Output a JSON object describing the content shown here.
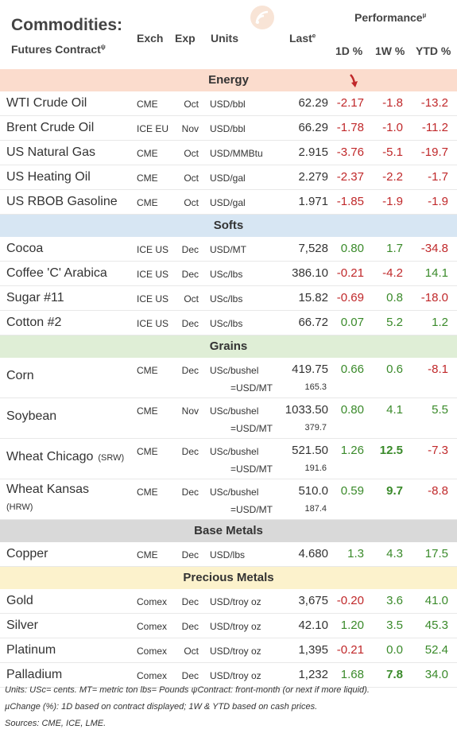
{
  "header": {
    "title": "Commodities:",
    "subtitle": "Futures Contract",
    "subtitle_sup": "ψ",
    "cols": {
      "exch": "Exch",
      "exp": "Exp",
      "units": "Units",
      "last": "Last",
      "last_sup": "e"
    },
    "performance": "Performance",
    "performance_sup": "µ",
    "pcols": {
      "d1": "1D %",
      "w1": "1W %",
      "ytd": "YTD %"
    }
  },
  "sections": {
    "energy": "Energy",
    "softs": "Softs",
    "grains": "Grains",
    "base": "Base Metals",
    "precious": "Precious Metals"
  },
  "energy": [
    {
      "name": "WTI Crude Oil",
      "exch": "CME",
      "exp": "Oct",
      "units": "USD/bbl",
      "last": "62.29",
      "d1": "-2.17",
      "w1": "-1.8",
      "ytd": "-13.2"
    },
    {
      "name": "Brent Crude Oil",
      "exch": "ICE EU",
      "exp": "Nov",
      "units": "USD/bbl",
      "last": "66.29",
      "d1": "-1.78",
      "w1": "-1.0",
      "ytd": "-11.2"
    },
    {
      "name": "US Natural Gas",
      "exch": "CME",
      "exp": "Oct",
      "units": "USD/MMBtu",
      "last": "2.915",
      "d1": "-3.76",
      "w1": "-5.1",
      "ytd": "-19.7"
    },
    {
      "name": "US Heating Oil",
      "exch": "CME",
      "exp": "Oct",
      "units": "USD/gal",
      "last": "2.279",
      "d1": "-2.37",
      "w1": "-2.2",
      "ytd": "-1.7"
    },
    {
      "name": "US RBOB Gasoline",
      "exch": "CME",
      "exp": "Oct",
      "units": "USD/gal",
      "last": "1.971",
      "d1": "-1.85",
      "w1": "-1.9",
      "ytd": "-1.9"
    }
  ],
  "softs": [
    {
      "name": "Cocoa",
      "exch": "ICE US",
      "exp": "Dec",
      "units": "USD/MT",
      "last": "7,528",
      "d1": "0.80",
      "w1": "1.7",
      "ytd": "-34.8"
    },
    {
      "name": "Coffee 'C' Arabica",
      "exch": "ICE US",
      "exp": "Dec",
      "units": "USc/lbs",
      "last": "386.10",
      "d1": "-0.21",
      "w1": "-4.2",
      "ytd": "14.1"
    },
    {
      "name": "Sugar #11",
      "exch": "ICE US",
      "exp": "Oct",
      "units": "USc/lbs",
      "last": "15.82",
      "d1": "-0.69",
      "w1": "0.8",
      "ytd": "-18.0"
    },
    {
      "name": "Cotton #2",
      "exch": "ICE US",
      "exp": "Dec",
      "units": "USc/lbs",
      "last": "66.72",
      "d1": "0.07",
      "w1": "5.2",
      "ytd": "1.2"
    }
  ],
  "grains": [
    {
      "name": "Corn",
      "qual": "",
      "exch": "CME",
      "exp": "Dec",
      "units": "USc/bushel",
      "last": "419.75",
      "d1": "0.66",
      "w1": "0.6",
      "ytd": "-8.1",
      "sub_units": "=USD/MT",
      "sub_val": "165.3"
    },
    {
      "name": "Soybean",
      "qual": "",
      "exch": "CME",
      "exp": "Nov",
      "units": "USc/bushel",
      "last": "1033.50",
      "d1": "0.80",
      "w1": "4.1",
      "ytd": "5.5",
      "sub_units": "=USD/MT",
      "sub_val": "379.7"
    },
    {
      "name": "Wheat Chicago",
      "qual": "(SRW)",
      "exch": "CME",
      "exp": "Dec",
      "units": "USc/bushel",
      "last": "521.50",
      "d1": "1.26",
      "w1": "12.5",
      "ytd": "-7.3",
      "sub_units": "=USD/MT",
      "sub_val": "191.6"
    },
    {
      "name": "Wheat Kansas",
      "qual": "(HRW)",
      "exch": "CME",
      "exp": "Dec",
      "units": "USc/bushel",
      "last": "510.0",
      "d1": "0.59",
      "w1": "9.7",
      "ytd": "-8.8",
      "sub_units": "=USD/MT",
      "sub_val": "187.4"
    }
  ],
  "base": [
    {
      "name": "Copper",
      "exch": "CME",
      "exp": "Dec",
      "units": "USD/lbs",
      "last": "4.680",
      "d1": "1.3",
      "w1": "4.3",
      "ytd": "17.5"
    }
  ],
  "precious": [
    {
      "name": "Gold",
      "exch": "Comex",
      "exp": "Dec",
      "units": "USD/troy oz",
      "last": "3,675",
      "d1": "-0.20",
      "w1": "3.6",
      "ytd": "41.0"
    },
    {
      "name": "Silver",
      "exch": "Comex",
      "exp": "Dec",
      "units": "USD/troy oz",
      "last": "42.10",
      "d1": "1.20",
      "w1": "3.5",
      "ytd": "45.3"
    },
    {
      "name": "Platinum",
      "exch": "Comex",
      "exp": "Oct",
      "units": "USD/troy oz",
      "last": "1,395",
      "d1": "-0.21",
      "w1": "0.0",
      "ytd": "52.4"
    },
    {
      "name": "Palladium",
      "exch": "Comex",
      "exp": "Dec",
      "units": "USD/troy oz",
      "last": "1,232",
      "d1": "1.68",
      "w1": "7.8",
      "ytd": "34.0"
    }
  ],
  "footer": {
    "line1": "Units: USc= cents.   MT= metric ton    lbs= Pounds  ψContract: front-month (or next if more liquid).",
    "line2": "µChange (%): 1D based on contract displayed; 1W & YTD based on cash prices.",
    "line3": "Sources: CME, ICE, LME."
  },
  "colors": {
    "positive": "#3a8a2a",
    "negative": "#c0282a",
    "arrow": "#c0282a"
  },
  "icons": {
    "logo": "signal-logo-icon",
    "arrow": "down-arrow-icon"
  }
}
